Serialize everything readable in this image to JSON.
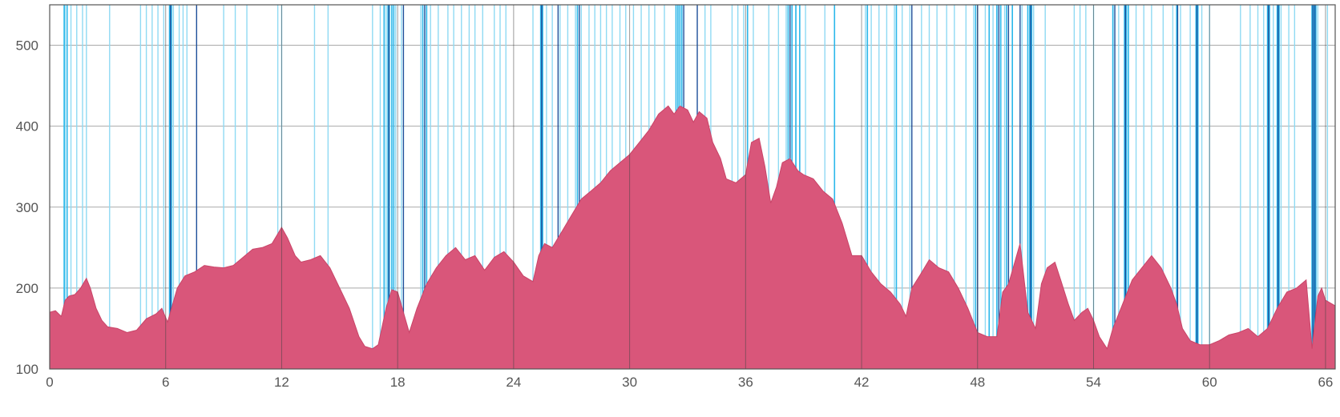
{
  "chart_data": {
    "type": "area",
    "title": "",
    "xlabel": "",
    "ylabel": "",
    "xlim": [
      0,
      66.5
    ],
    "ylim": [
      100,
      550
    ],
    "xticks": [
      0,
      6,
      12,
      18,
      24,
      30,
      36,
      42,
      48,
      54,
      60,
      66
    ],
    "yticks": [
      100,
      200,
      300,
      400,
      500
    ],
    "grid": true,
    "colors": {
      "area_fill": "#d9567a",
      "area_stroke": "#c94468",
      "marker_light": "#8fdaf3",
      "marker_mid": "#2bb7ea",
      "marker_dark": "#1d4f9a",
      "grid": "#a9a9a9",
      "frame": "#555555"
    },
    "series": [
      {
        "x": [
          0,
          0.3,
          0.6,
          0.8,
          1.0,
          1.3,
          1.6,
          1.9,
          2.1,
          2.4,
          2.7,
          3.0,
          3.5,
          4.0,
          4.5,
          5.0,
          5.5,
          5.8,
          6.1,
          6.3,
          6.6,
          7.0,
          7.5,
          8.0,
          8.5,
          9.0,
          9.5,
          10.0,
          10.5,
          11.0,
          11.5,
          12.0,
          12.3,
          12.7,
          13.0,
          13.5,
          14.0,
          14.5,
          15.0,
          15.5,
          16.0,
          16.3,
          16.7,
          17.0,
          17.4,
          17.7,
          18.0,
          18.3,
          18.6,
          19.0,
          19.5,
          20.0,
          20.5,
          21.0,
          21.5,
          22.0,
          22.5,
          23.0,
          23.5,
          24.0,
          24.5,
          25.0,
          25.3,
          25.6,
          26.0,
          26.5,
          27.0,
          27.5,
          28.0,
          28.5,
          29.0,
          29.5,
          30.0,
          30.5,
          31.0,
          31.5,
          32.0,
          32.3,
          32.6,
          33.0,
          33.3,
          33.6,
          34.0,
          34.3,
          34.7,
          35.0,
          35.5,
          36.0,
          36.3,
          36.7,
          37.0,
          37.3,
          37.6,
          37.9,
          38.3,
          38.7,
          39.0,
          39.5,
          40.0,
          40.5,
          41.0,
          41.5,
          42.0,
          42.5,
          43.0,
          43.5,
          44.0,
          44.3,
          44.6,
          45.0,
          45.5,
          46.0,
          46.5,
          47.0,
          47.5,
          48.0,
          48.5,
          49.0,
          49.3,
          49.6,
          49.9,
          50.2,
          50.6,
          51.0,
          51.3,
          51.6,
          52.0,
          52.3,
          52.7,
          53.0,
          53.4,
          53.7,
          54.0,
          54.3,
          54.7,
          55.0,
          55.5,
          56.0,
          56.5,
          57.0,
          57.5,
          58.0,
          58.3,
          58.6,
          59.0,
          59.5,
          60.0,
          60.5,
          61.0,
          61.5,
          62.0,
          62.5,
          63.0,
          63.5,
          64.0,
          64.5,
          65.0,
          65.3,
          65.6,
          65.8,
          66.0,
          66.5
        ],
        "y": [
          170,
          172,
          165,
          185,
          190,
          192,
          200,
          212,
          200,
          175,
          160,
          152,
          150,
          145,
          148,
          162,
          168,
          175,
          158,
          175,
          200,
          215,
          220,
          228,
          226,
          225,
          228,
          238,
          248,
          250,
          255,
          275,
          262,
          240,
          232,
          235,
          240,
          225,
          200,
          175,
          140,
          128,
          125,
          130,
          175,
          198,
          195,
          170,
          145,
          175,
          205,
          225,
          240,
          250,
          235,
          240,
          222,
          238,
          245,
          232,
          215,
          208,
          240,
          255,
          250,
          270,
          290,
          310,
          320,
          330,
          345,
          355,
          365,
          380,
          395,
          415,
          425,
          415,
          425,
          420,
          405,
          418,
          410,
          380,
          360,
          335,
          330,
          340,
          380,
          385,
          350,
          305,
          325,
          355,
          360,
          345,
          340,
          335,
          320,
          310,
          280,
          240,
          240,
          220,
          205,
          195,
          180,
          165,
          200,
          215,
          235,
          225,
          220,
          200,
          175,
          145,
          140,
          140,
          195,
          205,
          230,
          255,
          170,
          150,
          205,
          225,
          232,
          210,
          180,
          160,
          170,
          175,
          160,
          140,
          125,
          150,
          180,
          210,
          225,
          240,
          225,
          200,
          180,
          150,
          135,
          130,
          130,
          135,
          142,
          145,
          150,
          140,
          150,
          175,
          195,
          200,
          210,
          125,
          190,
          200,
          185,
          178
        ]
      }
    ],
    "markers": {
      "light": [
        0.8,
        1.1,
        1.4,
        1.7,
        1.9,
        3.1,
        4.7,
        5.0,
        5.3,
        5.6,
        5.9,
        6.4,
        6.7,
        6.9,
        7.1,
        9.0,
        9.6,
        10.2,
        11.8,
        12.0,
        13.7,
        14.4,
        16.7,
        17.1,
        17.4,
        17.6,
        17.9,
        18.2,
        19.2,
        19.7,
        20.1,
        20.6,
        20.9,
        21.3,
        21.7,
        22.0,
        22.4,
        23.0,
        23.3,
        23.6,
        25.0,
        25.7,
        26.0,
        26.4,
        26.8,
        27.2,
        27.5,
        27.9,
        28.2,
        28.5,
        28.8,
        29.1,
        29.5,
        29.8,
        30.2,
        30.6,
        31.0,
        31.3,
        31.8,
        33.9,
        34.2,
        35.3,
        35.6,
        35.9,
        36.4,
        37.2,
        37.7,
        38.1,
        38.6,
        39.1,
        40.1,
        42.2,
        42.5,
        42.9,
        43.3,
        43.7,
        44.1,
        44.5,
        45.1,
        45.5,
        45.9,
        46.4,
        46.8,
        47.4,
        47.8,
        48.4,
        48.8,
        49.0,
        49.4,
        49.8,
        50.3,
        50.9,
        51.5,
        53.0,
        53.3,
        53.6,
        54.0,
        55.0,
        55.3,
        56.2,
        56.6,
        57.0,
        57.6,
        58.1,
        58.5,
        59.0,
        59.6,
        60.0,
        61.6,
        62.1,
        62.5,
        62.8,
        63.3,
        63.7,
        64.1,
        64.4,
        65.6,
        66.1
      ],
      "mid": [
        0.75,
        0.9,
        6.2,
        6.3,
        17.3,
        17.5,
        17.7,
        17.8,
        19.3,
        19.5,
        25.4,
        25.5,
        27.3,
        32.4,
        32.5,
        32.6,
        32.7,
        36.1,
        38.2,
        38.4,
        38.6,
        38.8,
        40.6,
        42.3,
        43.8,
        47.9,
        48.6,
        49.0,
        49.2,
        49.5,
        49.8,
        50.6,
        50.7,
        50.8,
        55.0,
        55.6,
        55.7,
        55.8,
        58.3,
        59.3,
        59.4,
        63.0,
        63.1,
        63.5,
        63.6,
        65.3,
        65.4,
        65.5
      ],
      "dark": [
        6.25,
        7.6,
        17.55,
        18.3,
        19.4,
        25.45,
        26.3,
        27.4,
        32.8,
        33.5,
        38.3,
        44.6,
        48.0,
        49.1,
        49.6,
        50.2,
        50.75,
        55.1,
        55.65,
        58.35,
        59.35,
        63.05,
        63.55,
        65.35,
        65.45
      ]
    }
  }
}
